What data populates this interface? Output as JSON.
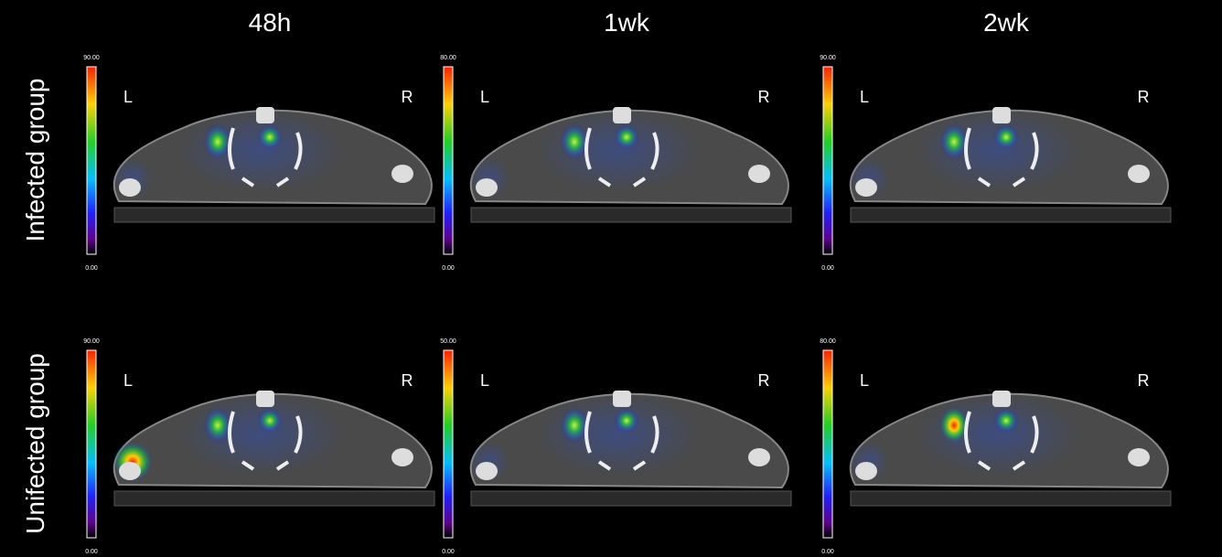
{
  "columns": [
    "48h",
    "1wk",
    "2wk"
  ],
  "rows": [
    {
      "label": "Infected group",
      "panels": [
        {
          "scale_max": "90.00",
          "scale_min": "0.00",
          "left": "L",
          "right": "R"
        },
        {
          "scale_max": "80.00",
          "scale_min": "0.00",
          "left": "L",
          "right": "R"
        },
        {
          "scale_max": "90.00",
          "scale_min": "0.00",
          "left": "L",
          "right": "R"
        }
      ]
    },
    {
      "label": "Unifected group",
      "panels": [
        {
          "scale_max": "90.00",
          "scale_min": "0.00",
          "left": "L",
          "right": "R"
        },
        {
          "scale_max": "50.00",
          "scale_min": "0.00",
          "left": "L",
          "right": "R"
        },
        {
          "scale_max": "80.00",
          "scale_min": "0.00",
          "left": "L",
          "right": "R"
        }
      ]
    }
  ]
}
